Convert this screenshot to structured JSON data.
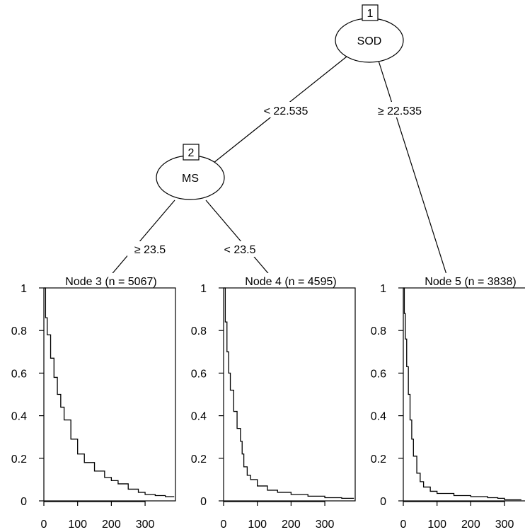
{
  "nodes": {
    "root": {
      "id": "1",
      "var": "SOD"
    },
    "inner": {
      "id": "2",
      "var": "MS"
    }
  },
  "edges": {
    "root_left": "< 22.535",
    "root_right": "≥ 22.535",
    "inner_left": "≥ 23.5",
    "inner_right": "< 23.5"
  },
  "chart_data": [
    {
      "type": "line",
      "title": "Node 3 (n = 5067)",
      "x": [
        0,
        5,
        10,
        20,
        30,
        40,
        50,
        60,
        80,
        100,
        120,
        150,
        180,
        200,
        220,
        250,
        280,
        300,
        330,
        360,
        385
      ],
      "y": [
        1.0,
        0.86,
        0.78,
        0.67,
        0.58,
        0.5,
        0.44,
        0.38,
        0.29,
        0.22,
        0.18,
        0.14,
        0.11,
        0.095,
        0.08,
        0.055,
        0.04,
        0.03,
        0.025,
        0.02,
        0.018
      ],
      "xticks": [
        0,
        100,
        200,
        300
      ],
      "yticks": [
        "0",
        "0.2",
        "0.4",
        "0.6",
        "0.8",
        "1"
      ],
      "xlim": [
        0,
        390
      ],
      "ylim": [
        0,
        1
      ]
    },
    {
      "type": "line",
      "title": "Node 4 (n = 4595)",
      "x": [
        0,
        5,
        10,
        15,
        20,
        30,
        40,
        50,
        55,
        60,
        70,
        80,
        100,
        130,
        160,
        200,
        250,
        300,
        350,
        385
      ],
      "y": [
        1.0,
        0.84,
        0.7,
        0.6,
        0.52,
        0.42,
        0.34,
        0.28,
        0.22,
        0.16,
        0.12,
        0.1,
        0.07,
        0.05,
        0.04,
        0.03,
        0.022,
        0.015,
        0.012,
        0.01
      ],
      "xticks": [
        0,
        100,
        200,
        300
      ],
      "yticks": [
        "0",
        "0.2",
        "0.4",
        "0.6",
        "0.8",
        "1"
      ],
      "xlim": [
        0,
        390
      ],
      "ylim": [
        0,
        1
      ]
    },
    {
      "type": "line",
      "title": "Node 5 (n = 3838)",
      "x": [
        0,
        3,
        6,
        10,
        15,
        20,
        25,
        30,
        40,
        50,
        60,
        80,
        100,
        150,
        200,
        250,
        280,
        300,
        350
      ],
      "y": [
        1.0,
        0.88,
        0.76,
        0.63,
        0.5,
        0.38,
        0.29,
        0.21,
        0.13,
        0.09,
        0.065,
        0.045,
        0.035,
        0.025,
        0.02,
        0.015,
        0.012,
        0.005,
        0.005
      ],
      "xticks": [
        0,
        100,
        200,
        300
      ],
      "yticks": [
        "0",
        "0.2",
        "0.4",
        "0.6",
        "0.8",
        "1"
      ],
      "xlim": [
        0,
        390
      ],
      "ylim": [
        0,
        1
      ]
    }
  ]
}
